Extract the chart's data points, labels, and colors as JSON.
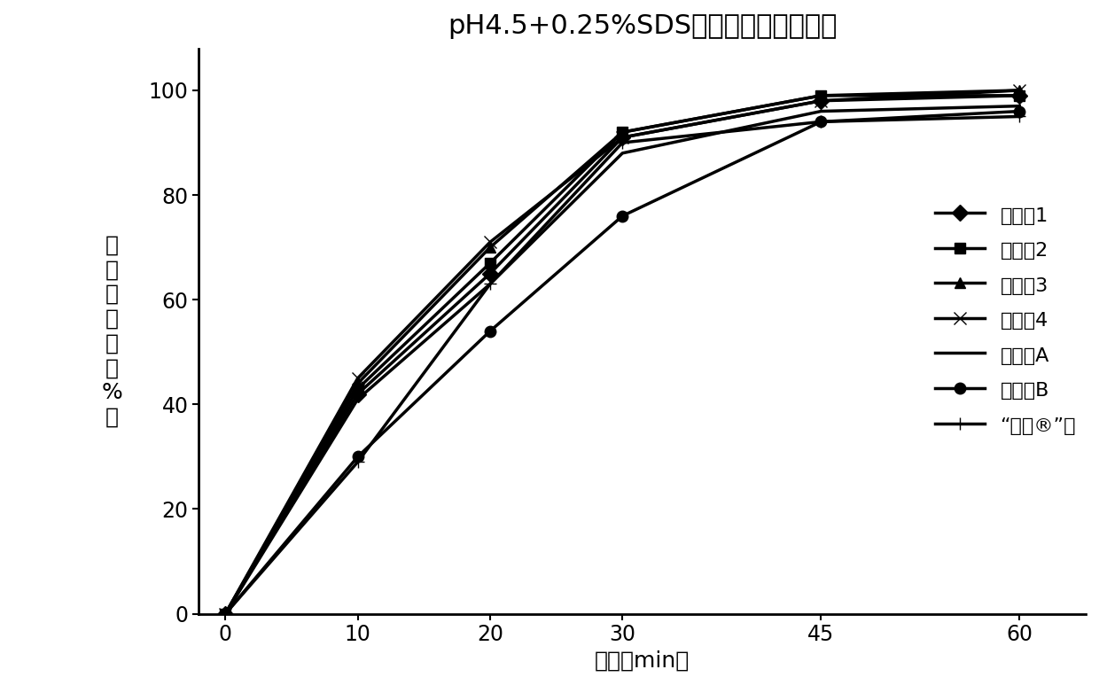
{
  "title": "pH4.5+0.25%SDS溶液中溶出曲线对比",
  "xlabel": "时间（min）",
  "ylabel_lines": [
    "累",
    "积",
    "溶",
    "出",
    "度",
    "（",
    "%",
    "）"
  ],
  "x": [
    0,
    10,
    20,
    30,
    45,
    60
  ],
  "series": [
    {
      "label": "实施例1",
      "y": [
        0,
        42,
        65,
        91,
        98,
        99
      ],
      "marker": "D",
      "markersize": 9,
      "linewidth": 2.5
    },
    {
      "label": "实施例2",
      "y": [
        0,
        43,
        67,
        92,
        99,
        99
      ],
      "marker": "s",
      "markersize": 9,
      "linewidth": 2.5
    },
    {
      "label": "实施例3",
      "y": [
        0,
        44,
        70,
        92,
        99,
        100
      ],
      "marker": "^",
      "markersize": 9,
      "linewidth": 2.5
    },
    {
      "label": "实施例4",
      "y": [
        0,
        45,
        71,
        91,
        98,
        100
      ],
      "marker": "x",
      "markersize": 10,
      "linewidth": 2.5
    },
    {
      "label": "试验例A",
      "y": [
        0,
        41,
        63,
        88,
        96,
        97
      ],
      "marker": "None",
      "markersize": 0,
      "linewidth": 2.5
    },
    {
      "label": "试验例B",
      "y": [
        0,
        30,
        54,
        76,
        94,
        96
      ],
      "marker": "o",
      "markersize": 9,
      "linewidth": 2.5
    },
    {
      "label": "“泽珂®”片",
      "y": [
        0,
        29,
        63,
        90,
        94,
        95
      ],
      "marker": "+",
      "markersize": 10,
      "linewidth": 2.5
    }
  ],
  "xlim": [
    -2,
    65
  ],
  "ylim": [
    0,
    108
  ],
  "xticks": [
    0,
    10,
    20,
    30,
    45,
    60
  ],
  "yticks": [
    0,
    20,
    40,
    60,
    80,
    100
  ],
  "color": "#000000",
  "background": "#ffffff",
  "title_fontsize": 22,
  "label_fontsize": 18,
  "tick_fontsize": 17,
  "legend_fontsize": 16
}
